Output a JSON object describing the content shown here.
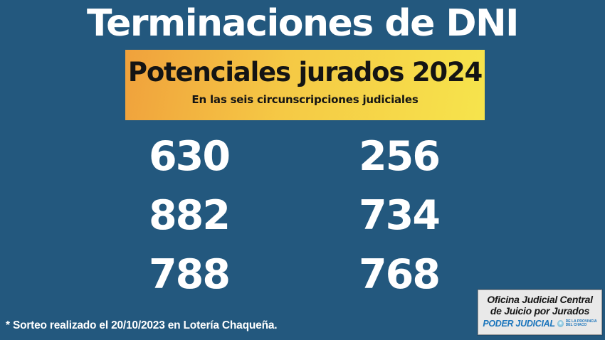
{
  "title": "Terminaciones de DNI",
  "banner": {
    "heading": "Potenciales jurados 2024",
    "subheading": "En las seis circunscripciones judiciales",
    "gradient_from": "#f0a13c",
    "gradient_to": "#f6e44c",
    "text_color": "#141414"
  },
  "numbers": [
    "630",
    "256",
    "882",
    "734",
    "788",
    "768"
  ],
  "footnote": "* Sorteo realizado el 20/10/2023 en Lotería Chaqueña.",
  "logo_box": {
    "line1": "Oficina Judicial Central",
    "line2": "de Juicio por Jurados",
    "brand": "PODER JUDICIAL",
    "brand_sub_line1": "DE LA PROVINCIA",
    "brand_sub_line2": "DEL CHACO",
    "brand_color": "#1b75bc"
  },
  "colors": {
    "background": "#23587e",
    "text": "#ffffff"
  }
}
